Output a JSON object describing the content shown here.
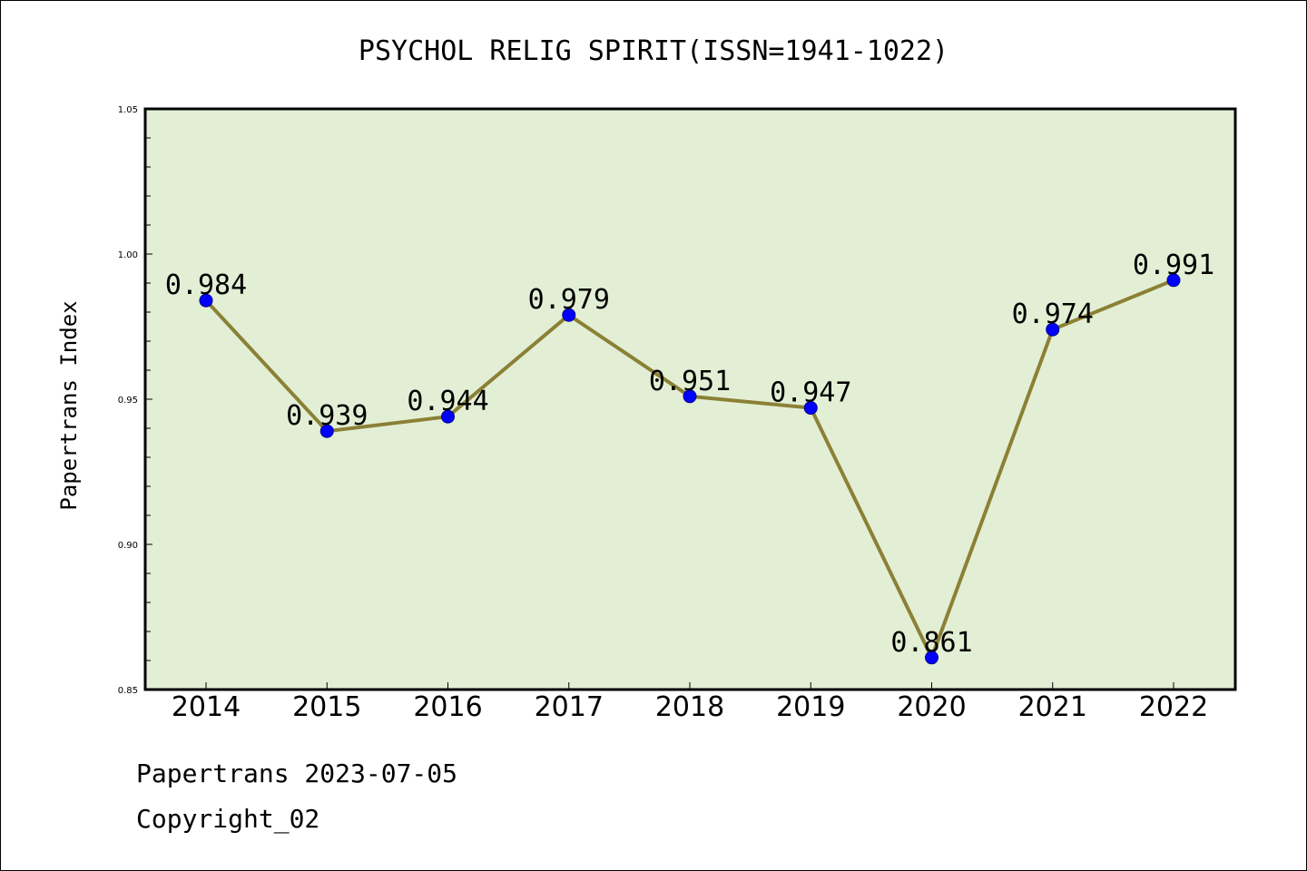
{
  "chart_data": {
    "type": "line",
    "title": "PSYCHOL RELIG SPIRIT(ISSN=1941-1022)",
    "xlabel": "",
    "ylabel": "Papertrans Index",
    "categories": [
      "2014",
      "2015",
      "2016",
      "2017",
      "2018",
      "2019",
      "2020",
      "2021",
      "2022"
    ],
    "values": [
      0.984,
      0.939,
      0.944,
      0.979,
      0.951,
      0.947,
      0.861,
      0.974,
      0.991
    ],
    "data_labels": [
      "0.984",
      "0.939",
      "0.944",
      "0.979",
      "0.951",
      "0.947",
      "0.861",
      "0.974",
      "0.991"
    ],
    "ylim": [
      0.85,
      1.05
    ],
    "yticks": [
      "0.85",
      "0.90",
      "0.95",
      "1.00",
      "1.05"
    ],
    "grid": false,
    "colors": {
      "plot_background": "#e2efd5",
      "line": "#8b8035",
      "marker": "#0000ff"
    }
  },
  "footer": {
    "line1": "Papertrans 2023-07-05",
    "line2": "Copyright_02"
  }
}
